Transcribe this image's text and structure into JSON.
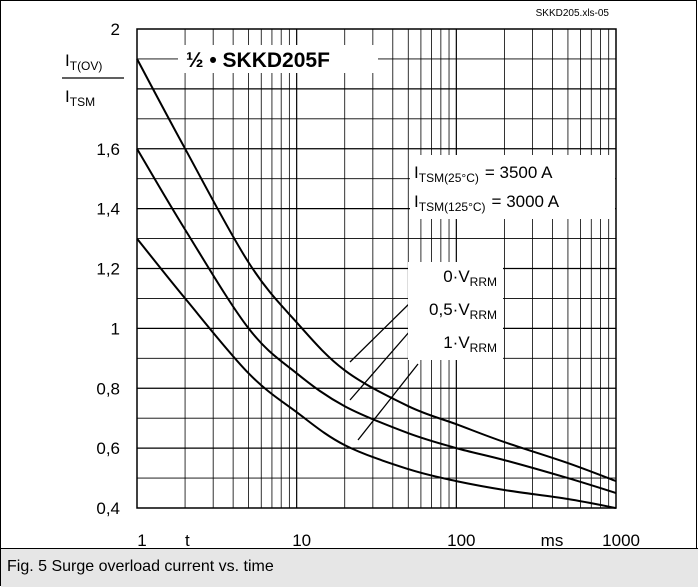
{
  "chart_data": {
    "type": "line",
    "file_label": "SKKD205.xls-05",
    "title": "½ • SKKD205F",
    "ylabel": {
      "num_main": "I",
      "num_sub": "T(OV)",
      "den_main": "I",
      "den_sub": "TSM"
    },
    "xaxis": {
      "scale": "log",
      "xlim": [
        1,
        1000
      ],
      "unit": "ms",
      "symbol": "t",
      "ticks": [
        {
          "value": 1,
          "label": "1"
        },
        {
          "value": 10,
          "label": "10"
        },
        {
          "value": 100,
          "label": "100"
        },
        {
          "value": 1000,
          "label": "1000"
        }
      ]
    },
    "yaxis": {
      "ylim": [
        0.4,
        2
      ],
      "ticks": [
        {
          "value": 0.4,
          "label": "0,4"
        },
        {
          "value": 0.6,
          "label": "0,6"
        },
        {
          "value": 0.8,
          "label": "0,8"
        },
        {
          "value": 1.0,
          "label": "1"
        },
        {
          "value": 1.2,
          "label": "1,2"
        },
        {
          "value": 1.4,
          "label": "1,4"
        },
        {
          "value": 1.6,
          "label": "1,6"
        },
        {
          "value": 2.0,
          "label": "2"
        }
      ]
    },
    "grid": true,
    "ratings": [
      {
        "main": "I",
        "sub": "TSM(25°C)",
        "value": "= 3500 A"
      },
      {
        "main": "I",
        "sub": "TSM(125°C)",
        "value": "= 3000 A"
      }
    ],
    "series": [
      {
        "name_pre": "0·V",
        "name_sub": "RRM",
        "x": [
          1,
          2,
          5,
          10,
          20,
          50,
          100,
          200,
          500,
          1000
        ],
        "y": [
          1.9,
          1.6,
          1.22,
          1.02,
          0.86,
          0.74,
          0.68,
          0.62,
          0.55,
          0.49
        ]
      },
      {
        "name_pre": "0,5·V",
        "name_sub": "RRM",
        "x": [
          1,
          2,
          5,
          10,
          20,
          50,
          100,
          200,
          500,
          1000
        ],
        "y": [
          1.6,
          1.33,
          1.0,
          0.85,
          0.74,
          0.65,
          0.6,
          0.56,
          0.5,
          0.45
        ]
      },
      {
        "name_pre": "1·V",
        "name_sub": "RRM",
        "x": [
          1,
          2,
          5,
          10,
          20,
          50,
          100,
          200,
          500,
          1000
        ],
        "y": [
          1.3,
          1.1,
          0.85,
          0.72,
          0.61,
          0.53,
          0.49,
          0.46,
          0.43,
          0.4
        ]
      }
    ]
  },
  "caption": "Fig. 5 Surge overload current vs. time"
}
